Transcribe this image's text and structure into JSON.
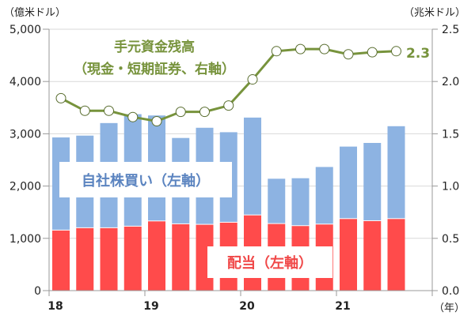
{
  "chart_data": {
    "type": "bar+line",
    "left_unit": "（億米ドル）",
    "right_unit": "（兆米ドル）",
    "x_unit": "（年）",
    "left_ylim": [
      0,
      5000
    ],
    "right_ylim": [
      0,
      2.5
    ],
    "left_ticks": [
      "0",
      "1,000",
      "2,000",
      "3,000",
      "4,000",
      "5,000"
    ],
    "right_ticks": [
      "0.0",
      "0.5",
      "1.0",
      "1.5",
      "2.0",
      "2.5"
    ],
    "x_tick_labels": [
      "18",
      "19",
      "20",
      "21"
    ],
    "grid": true,
    "periods": [
      "2018Q1",
      "2018Q2",
      "2018Q3",
      "2018Q4",
      "2019Q1",
      "2019Q2",
      "2019Q3",
      "2019Q4",
      "2020Q1",
      "2020Q2",
      "2020Q3",
      "2020Q4",
      "2021Q1",
      "2021Q2",
      "2021Q3"
    ],
    "series": [
      {
        "name": "配当（左軸）",
        "type": "stacked-bar",
        "axis": "left",
        "color": "#FF4B4B",
        "values": [
          1150,
          1195,
          1195,
          1225,
          1325,
          1270,
          1260,
          1300,
          1440,
          1275,
          1235,
          1265,
          1370,
          1330,
          1370
        ]
      },
      {
        "name": "自社株買い（左軸）",
        "type": "stacked-bar",
        "axis": "left",
        "color": "#8DB3E2",
        "values": [
          1780,
          1770,
          2010,
          2150,
          2025,
          1650,
          1855,
          1730,
          1870,
          865,
          915,
          1100,
          1385,
          1495,
          1775
        ]
      },
      {
        "name": "手元資金残高（現金・短期証券、右軸）",
        "type": "line",
        "axis": "right",
        "color": "#77933C",
        "values": [
          1.84,
          1.72,
          1.72,
          1.66,
          1.62,
          1.71,
          1.71,
          1.77,
          2.02,
          2.29,
          2.31,
          2.31,
          2.26,
          2.28,
          2.29
        ]
      }
    ],
    "annotations": {
      "line_title_1": "手元資金残高",
      "line_title_2": "（現金・短期証券、右軸）",
      "last_value_label": "2.3",
      "buyback_label": "自社株買い（左軸）",
      "dividend_label": "配当（左軸）"
    }
  }
}
